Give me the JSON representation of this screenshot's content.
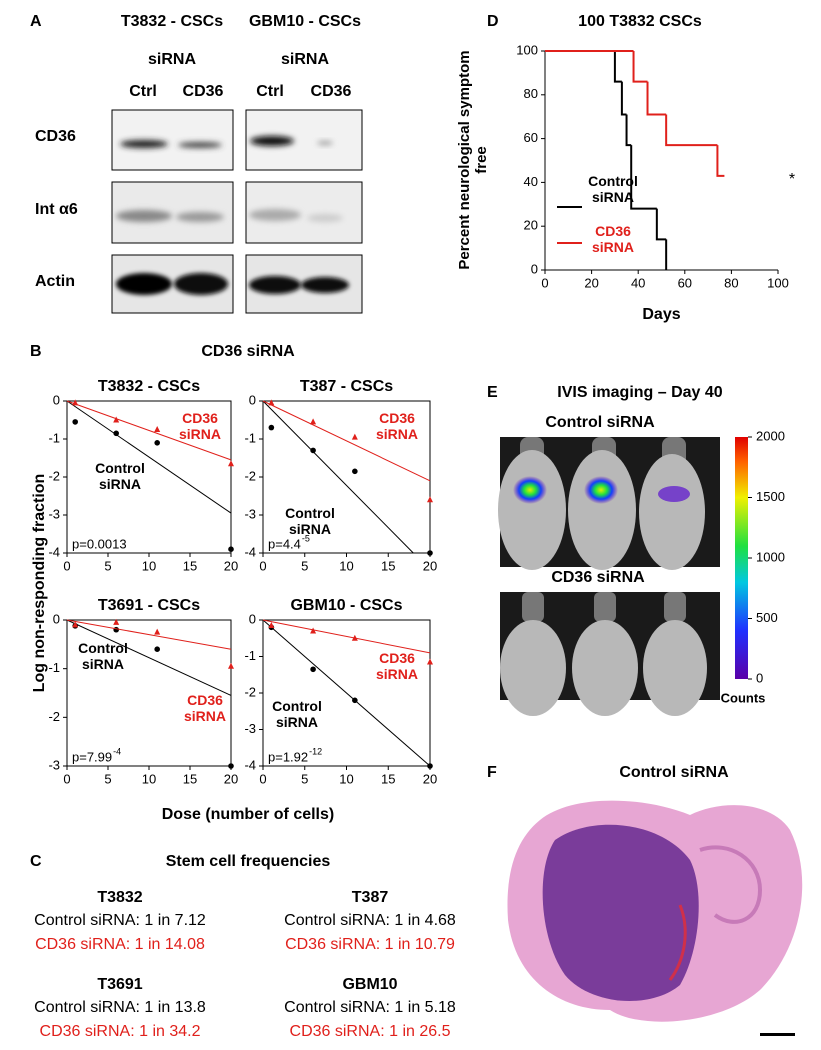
{
  "panel_labels": [
    "A",
    "B",
    "C",
    "D",
    "E",
    "F"
  ],
  "panel_a": {
    "columns": [
      {
        "title": "T3832 - CSCs",
        "subtitle": "siRNA",
        "lanes": [
          "Ctrl",
          "CD36"
        ]
      },
      {
        "title": "GBM10 - CSCs",
        "subtitle": "siRNA",
        "lanes": [
          "Ctrl",
          "CD36"
        ]
      }
    ],
    "rows": [
      "CD36",
      "Int α6",
      "Actin"
    ]
  },
  "panel_b": {
    "title": "CD36 siRNA",
    "y_label": "Log non-responding fraction",
    "x_label": "Dose (number of cells)"
  },
  "chart_data": [
    {
      "type": "step",
      "title": "100 T3832 CSCs",
      "x_label": "Days",
      "y_label": "Percent neurological symptom free",
      "xlim": [
        0,
        100
      ],
      "xticks": [
        0,
        20,
        40,
        60,
        80,
        100
      ],
      "ylim": [
        0,
        100
      ],
      "yticks": [
        0,
        20,
        40,
        60,
        80,
        100
      ],
      "series": [
        {
          "name": "Control siRNA",
          "color": "#000000",
          "x": [
            0,
            30,
            33,
            35,
            37,
            48,
            52
          ],
          "values": [
            100,
            86,
            71,
            57,
            28,
            14,
            0
          ],
          "end_x": 52
        },
        {
          "name": "CD36 siRNA",
          "color": "#e0201b",
          "x": [
            0,
            38,
            44,
            52,
            74
          ],
          "values": [
            100,
            86,
            71,
            57,
            43
          ],
          "end_x": 77
        }
      ],
      "annotations": [
        "*"
      ]
    },
    {
      "type": "scatter",
      "title": "T3832 - CSCs",
      "xlim": [
        0,
        20
      ],
      "xticks": [
        0,
        5,
        10,
        15,
        20
      ],
      "ylim": [
        -4,
        0
      ],
      "yticks": [
        -4,
        -3,
        -2,
        -1,
        0
      ],
      "series": [
        {
          "name": "Control siRNA",
          "color": "#000000",
          "x": [
            1,
            6,
            11,
            20
          ],
          "values": [
            -0.55,
            -0.85,
            -1.1,
            -3.9
          ],
          "fit_x": [
            0,
            20
          ],
          "fit_values": [
            0,
            -2.95
          ]
        },
        {
          "name": "CD36 siRNA",
          "color": "#e0201b",
          "x": [
            1,
            6,
            11,
            20
          ],
          "values": [
            -0.05,
            -0.5,
            -0.75,
            -1.65
          ],
          "fit_x": [
            0,
            20
          ],
          "fit_values": [
            0,
            -1.55
          ]
        }
      ],
      "p_value": "p=0.0013"
    },
    {
      "type": "scatter",
      "title": "T387 - CSCs",
      "xlim": [
        0,
        20
      ],
      "xticks": [
        0,
        5,
        10,
        15,
        20
      ],
      "ylim": [
        -4,
        0
      ],
      "yticks": [
        -4,
        -3,
        -2,
        -1,
        0
      ],
      "series": [
        {
          "name": "Control siRNA",
          "color": "#000000",
          "x": [
            1,
            6,
            11,
            20
          ],
          "values": [
            -0.7,
            -1.3,
            -1.85,
            -4.0
          ],
          "fit_x": [
            0,
            18
          ],
          "fit_values": [
            0,
            -4
          ]
        },
        {
          "name": "CD36 siRNA",
          "color": "#e0201b",
          "x": [
            1,
            6,
            11,
            20
          ],
          "values": [
            -0.05,
            -0.55,
            -0.95,
            -2.6
          ],
          "fit_x": [
            0,
            20
          ],
          "fit_values": [
            0,
            -2.1
          ]
        }
      ],
      "p_value": "p=4.4",
      "p_exponent": "-5"
    },
    {
      "type": "scatter",
      "title": "T3691 - CSCs",
      "xlim": [
        0,
        20
      ],
      "xticks": [
        0,
        5,
        10,
        15,
        20
      ],
      "ylim": [
        -3,
        0
      ],
      "yticks": [
        -3,
        -2,
        -1,
        0
      ],
      "series": [
        {
          "name": "Control siRNA",
          "color": "#000000",
          "x": [
            1,
            6,
            11,
            20
          ],
          "values": [
            -0.12,
            -0.2,
            -0.6,
            -3.0
          ],
          "fit_x": [
            0,
            20
          ],
          "fit_values": [
            0,
            -1.55
          ]
        },
        {
          "name": "CD36 siRNA",
          "color": "#e0201b",
          "x": [
            1,
            6,
            11,
            20
          ],
          "values": [
            -0.1,
            -0.05,
            -0.25,
            -0.95
          ],
          "fit_x": [
            0,
            20
          ],
          "fit_values": [
            0,
            -0.6
          ]
        }
      ],
      "p_value": "p=7.99",
      "p_exponent": "-4"
    },
    {
      "type": "scatter",
      "title": "GBM10 - CSCs",
      "xlim": [
        0,
        20
      ],
      "xticks": [
        0,
        5,
        10,
        15,
        20
      ],
      "ylim": [
        -4,
        0
      ],
      "yticks": [
        -4,
        -3,
        -2,
        -1,
        0
      ],
      "series": [
        {
          "name": "Control siRNA",
          "color": "#000000",
          "x": [
            1,
            6,
            11,
            20
          ],
          "values": [
            -0.2,
            -1.35,
            -2.2,
            -4.0
          ],
          "fit_x": [
            0,
            20
          ],
          "fit_values": [
            0,
            -4
          ]
        },
        {
          "name": "CD36 siRNA",
          "color": "#e0201b",
          "x": [
            1,
            6,
            11,
            20
          ],
          "values": [
            -0.15,
            -0.3,
            -0.5,
            -1.15
          ],
          "fit_x": [
            0,
            20
          ],
          "fit_values": [
            0,
            -0.9
          ]
        }
      ],
      "p_value": "p=1.92",
      "p_exponent": "-12"
    }
  ],
  "panel_c": {
    "title": "Stem cell frequencies",
    "groups": [
      {
        "name": "T3832",
        "control": "Control siRNA: 1 in 7.12",
        "cd36": "CD36 siRNA: 1 in 14.08"
      },
      {
        "name": "T387",
        "control": "Control siRNA: 1 in 4.68",
        "cd36": "CD36 siRNA: 1 in 10.79"
      },
      {
        "name": "T3691",
        "control": "Control siRNA: 1 in 13.8",
        "cd36": "CD36 siRNA: 1 in 34.2"
      },
      {
        "name": "GBM10",
        "control": "Control siRNA: 1 in 5.18",
        "cd36": "CD36 siRNA: 1 in 26.5"
      }
    ]
  },
  "panel_e": {
    "title": "IVIS imaging – Day 40",
    "rows": [
      "Control siRNA",
      "CD36 siRNA"
    ],
    "colorbar": {
      "label": "Counts",
      "ylim": [
        0,
        2000
      ],
      "yticks": [
        0,
        500,
        1000,
        1500,
        2000
      ]
    }
  },
  "panel_f": {
    "title": "Control siRNA"
  }
}
